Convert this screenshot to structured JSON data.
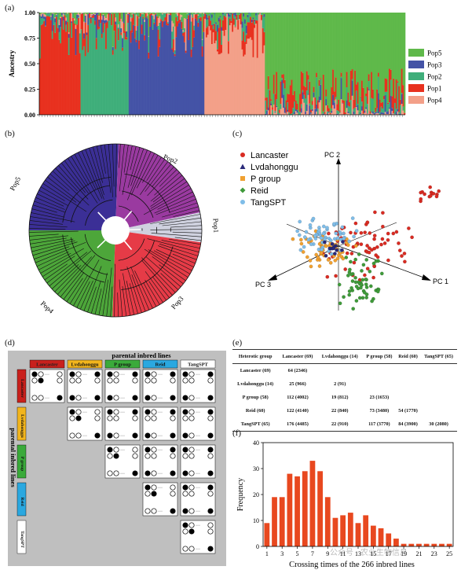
{
  "panels": {
    "a": "(a)",
    "b": "(b)",
    "c": "(c)",
    "d": "(d)",
    "e": "(e)",
    "f": "(f)"
  },
  "colors": {
    "pop5": "#5fb94a",
    "pop3": "#4453a6",
    "pop2": "#3fae7a",
    "pop1": "#e8311f",
    "pop4": "#f3a089"
  },
  "chart_data": [
    {
      "type": "bar",
      "panel": "a",
      "ylabel": "Ancestry",
      "yticks": [
        "1.00",
        "0.75",
        "0.50",
        "0.25",
        "0.00"
      ],
      "ylim": [
        0,
        1
      ],
      "legend": [
        "Pop5",
        "Pop3",
        "Pop2",
        "Pop1",
        "Pop4"
      ],
      "segments": [
        {
          "dominant": "Pop1",
          "count": 30
        },
        {
          "dominant": "Pop2",
          "count": 35
        },
        {
          "dominant": "Pop3",
          "count": 55
        },
        {
          "dominant": "Pop4",
          "count": 44
        },
        {
          "dominant": "Pop5",
          "count": 102
        }
      ]
    },
    {
      "type": "scatter",
      "panel": "c",
      "axes": [
        "PC 1",
        "PC 2",
        "PC 3"
      ],
      "legend": [
        {
          "name": "Lancaster",
          "color": "#d92b22",
          "marker": "circle"
        },
        {
          "name": "Lvdahonggu",
          "color": "#2a2a7a",
          "marker": "triangle"
        },
        {
          "name": "P group",
          "color": "#f0a030",
          "marker": "square"
        },
        {
          "name": "Reid",
          "color": "#3f9a3a",
          "marker": "diamond"
        },
        {
          "name": "TangSPT",
          "color": "#7fbde8",
          "marker": "circle"
        }
      ]
    },
    {
      "type": "bar",
      "panel": "f",
      "xlabel": "Crossing times of the 266 inbred lines",
      "ylabel": "Frequency",
      "ylim": [
        0,
        40
      ],
      "yticks": [
        "0",
        "10",
        "20",
        "30",
        "40"
      ],
      "xticks": [
        "1",
        "3",
        "5",
        "7",
        "9",
        "11",
        "13",
        "15",
        "17",
        "19",
        "21",
        "23",
        "25"
      ],
      "x": [
        1,
        2,
        3,
        4,
        5,
        6,
        7,
        8,
        9,
        10,
        11,
        12,
        13,
        14,
        15,
        16,
        17,
        18,
        19,
        20,
        21,
        22,
        23,
        24,
        25
      ],
      "values": [
        9,
        19,
        19,
        28,
        27,
        29,
        33,
        29,
        19,
        11,
        12,
        13,
        9,
        12,
        8,
        7,
        5,
        3,
        1,
        1,
        1,
        1,
        1,
        1,
        1
      ],
      "color": "#e8481f"
    }
  ],
  "tree": {
    "labels": [
      "Pop2",
      "Pop5",
      "Pop1",
      "Pop3",
      "Pop4"
    ]
  },
  "matrix": {
    "title": "parental inbred lines",
    "side_title": "parental inbred lines",
    "groups": [
      {
        "name": "Lancaster",
        "color": "#c9201c"
      },
      {
        "name": "Lvdahonggu",
        "color": "#f2b51d"
      },
      {
        "name": "P group",
        "color": "#3aaa3a"
      },
      {
        "name": "Reid",
        "color": "#2aa8e0"
      },
      {
        "name": "TangSPT",
        "color": "#ffffff"
      }
    ]
  },
  "table": {
    "headers": [
      "Heterotic group",
      "Lancaster (69)",
      "Lvdahonggu (14)",
      "P group (58)",
      "Reid (60)",
      "TangSPT (65)"
    ],
    "rows": [
      {
        "label": "Lancaster (69)",
        "cells": [
          "64 (2346)",
          "",
          "",
          "",
          ""
        ]
      },
      {
        "label": "Lvdahonggu (14)",
        "cells": [
          "25 (966)",
          "2 (91)",
          "",
          "",
          ""
        ]
      },
      {
        "label": "P group (58)",
        "cells": [
          "112 (4002)",
          "19 (812)",
          "23 (1653)",
          "",
          ""
        ]
      },
      {
        "label": "Reid (60)",
        "cells": [
          "122 (4140)",
          "22 (840)",
          "73 (3480)",
          "54 (1770)",
          ""
        ]
      },
      {
        "label": "TangSPT (65)",
        "cells": [
          "176 (4485)",
          "22 (910)",
          "117 (3770)",
          "84 (3900)",
          "30 (2080)"
        ]
      }
    ]
  },
  "watermark": "公众号 · 农业生物信息"
}
